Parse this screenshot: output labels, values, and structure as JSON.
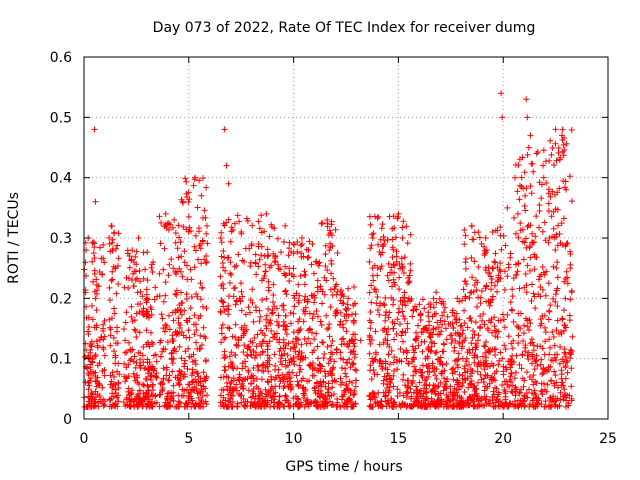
{
  "chart_data": {
    "type": "scatter",
    "title": "Day 073 of 2022, Rate Of TEC Index for receiver dumg",
    "xlabel": "GPS time / hours",
    "ylabel": "ROTI / TECUs",
    "xlim": [
      0,
      25
    ],
    "ylim": [
      0,
      0.6
    ],
    "xticks": [
      "0",
      "5",
      "10",
      "15",
      "20",
      "25"
    ],
    "yticks": [
      "0",
      "0.1",
      "0.2",
      "0.3",
      "0.4",
      "0.5",
      "0.6"
    ],
    "grid": true,
    "marker": "+",
    "color": "#ff0000",
    "series": [
      {
        "values": [
          [
            0.1,
            0.28
          ],
          [
            0.2,
            0.3
          ],
          [
            0.5,
            0.48
          ],
          [
            0.55,
            0.36
          ],
          [
            0.7,
            0.22
          ],
          [
            1.3,
            0.32
          ],
          [
            1.5,
            0.25
          ],
          [
            2.3,
            0.28
          ],
          [
            2.6,
            0.3
          ],
          [
            3.3,
            0.26
          ],
          [
            3.9,
            0.34
          ],
          [
            4.3,
            0.33
          ],
          [
            4.7,
            0.36
          ],
          [
            5.3,
            0.4
          ],
          [
            5.6,
            0.37
          ],
          [
            6.7,
            0.48
          ],
          [
            6.8,
            0.42
          ],
          [
            6.9,
            0.39
          ],
          [
            7.5,
            0.31
          ],
          [
            8.0,
            0.29
          ],
          [
            8.7,
            0.34
          ],
          [
            9.1,
            0.26
          ],
          [
            9.6,
            0.32
          ],
          [
            10.0,
            0.29
          ],
          [
            10.4,
            0.3
          ],
          [
            10.9,
            0.29
          ],
          [
            11.6,
            0.33
          ],
          [
            11.7,
            0.28
          ],
          [
            12.0,
            0.22
          ],
          [
            12.6,
            0.2
          ],
          [
            13.2,
            0.13
          ],
          [
            15.0,
            0.34
          ],
          [
            15.2,
            0.3
          ],
          [
            15.5,
            0.2
          ],
          [
            16.0,
            0.19
          ],
          [
            16.8,
            0.21
          ],
          [
            17.6,
            0.18
          ],
          [
            18.2,
            0.26
          ],
          [
            18.5,
            0.32
          ],
          [
            19.5,
            0.31
          ],
          [
            19.9,
            0.54
          ],
          [
            19.95,
            0.5
          ],
          [
            20.2,
            0.35
          ],
          [
            20.7,
            0.34
          ],
          [
            21.1,
            0.53
          ],
          [
            21.15,
            0.5
          ],
          [
            21.3,
            0.47
          ],
          [
            21.6,
            0.44
          ],
          [
            21.9,
            0.42
          ],
          [
            22.2,
            0.3
          ],
          [
            22.5,
            0.48
          ],
          [
            22.7,
            0.43
          ],
          [
            22.8,
            0.47
          ],
          [
            23.0,
            0.38
          ],
          [
            23.2,
            0.25
          ]
        ]
      }
    ],
    "data_ranges": [
      [
        0.0,
        1.0,
        0.02,
        0.3
      ],
      [
        1.2,
        1.7,
        0.02,
        0.32
      ],
      [
        1.9,
        3.5,
        0.02,
        0.28
      ],
      [
        3.6,
        4.6,
        0.02,
        0.34
      ],
      [
        4.6,
        5.9,
        0.02,
        0.4
      ],
      [
        6.5,
        9.2,
        0.02,
        0.34
      ],
      [
        9.2,
        11.3,
        0.02,
        0.3
      ],
      [
        11.3,
        12.1,
        0.02,
        0.33
      ],
      [
        12.2,
        13.0,
        0.02,
        0.22
      ],
      [
        13.6,
        15.6,
        0.02,
        0.34
      ],
      [
        15.6,
        16.6,
        0.02,
        0.2
      ],
      [
        16.6,
        18.1,
        0.02,
        0.2
      ],
      [
        18.1,
        20.5,
        0.02,
        0.32
      ],
      [
        20.5,
        22.0,
        0.02,
        0.45
      ],
      [
        22.0,
        23.3,
        0.02,
        0.48
      ]
    ]
  }
}
